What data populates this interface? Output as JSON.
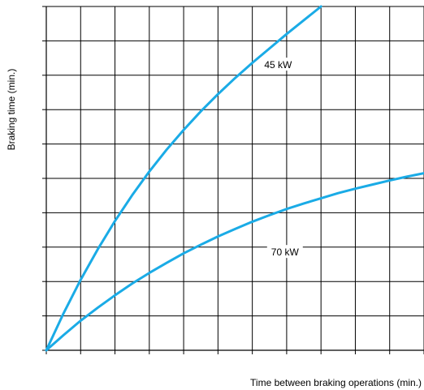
{
  "chart_data": {
    "type": "line",
    "title": "",
    "xlabel": "Time between braking operations (min.)",
    "ylabel": "Braking time (min.)",
    "xlim": [
      0,
      11
    ],
    "ylim": [
      0,
      10
    ],
    "x_ticks": [
      0,
      1,
      2,
      3,
      4,
      5,
      6,
      7,
      8,
      9,
      10,
      11
    ],
    "y_ticks": [
      0,
      1,
      2,
      3,
      4,
      5,
      6,
      7,
      8,
      9,
      10
    ],
    "tick_labels_shown": false,
    "grid": true,
    "legend": "none",
    "line_color": "#1aabe6",
    "series": [
      {
        "name": "45 kW",
        "x": [
          0,
          0.5,
          1,
          1.5,
          2,
          2.5,
          3,
          3.5,
          4,
          4.5,
          5,
          5.5,
          6,
          6.5,
          7,
          7.5,
          8
        ],
        "y": [
          0,
          1.07,
          2.05,
          2.94,
          3.76,
          4.51,
          5.2,
          5.83,
          6.41,
          6.95,
          7.45,
          7.92,
          8.36,
          8.78,
          9.2,
          9.6,
          10.0
        ]
      },
      {
        "name": "70 kW",
        "x": [
          0,
          0.5,
          1,
          1.5,
          2,
          2.5,
          3,
          3.5,
          4,
          4.5,
          5,
          5.5,
          6,
          6.5,
          7,
          7.5,
          8,
          8.5,
          9,
          9.5,
          10,
          10.5,
          11
        ],
        "y": [
          0,
          0.44,
          0.86,
          1.24,
          1.6,
          1.94,
          2.25,
          2.54,
          2.82,
          3.07,
          3.31,
          3.53,
          3.74,
          3.93,
          4.11,
          4.27,
          4.42,
          4.57,
          4.7,
          4.82,
          4.94,
          5.05,
          5.15
        ]
      }
    ],
    "annotations": [
      {
        "text": "45 kW",
        "series": "45 kW",
        "x": 6.75,
        "y": 8.3
      },
      {
        "text": "70 kW",
        "series": "70 kW",
        "x": 6.95,
        "y": 2.85
      }
    ]
  }
}
